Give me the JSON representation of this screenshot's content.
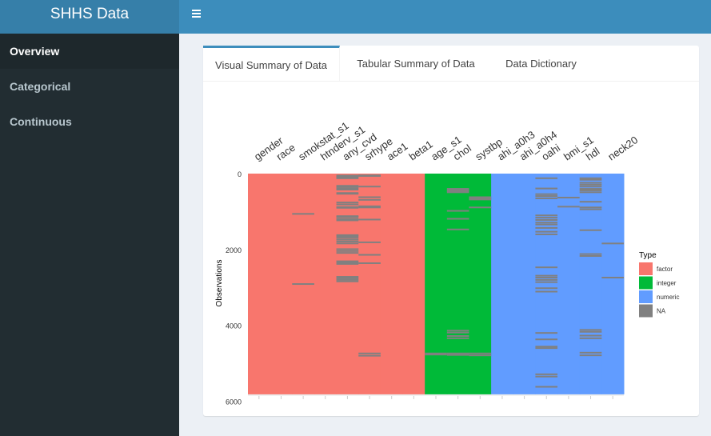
{
  "header": {
    "title": "SHHS Data"
  },
  "sidebar": {
    "items": [
      {
        "label": "Overview"
      },
      {
        "label": "Categorical"
      },
      {
        "label": "Continuous"
      }
    ]
  },
  "tabs": [
    {
      "label": "Visual Summary of Data"
    },
    {
      "label": "Tabular Summary of Data"
    },
    {
      "label": "Data Dictionary"
    }
  ],
  "chart_data": {
    "type": "heatmap",
    "variables": [
      "gender",
      "race",
      "smokstat_s1",
      "htnderv_s1",
      "any_cvd",
      "srhype",
      "ace1",
      "beta1",
      "age_s1",
      "chol",
      "systbp",
      "ahi_a0h3",
      "ahi_a0h4",
      "oahi",
      "bmi_s1",
      "hdl",
      "neck20"
    ],
    "variable_types": [
      "factor",
      "factor",
      "factor",
      "factor",
      "factor",
      "factor",
      "factor",
      "factor",
      "integer",
      "integer",
      "integer",
      "numeric",
      "numeric",
      "numeric",
      "numeric",
      "numeric",
      "numeric"
    ],
    "ylabel": "Observations",
    "y_ticks": [
      "0",
      "2000",
      "4000",
      "6000"
    ],
    "ylim": [
      0,
      6000
    ],
    "n_observations": 5800,
    "legend": {
      "title": "Type",
      "position": "right",
      "entries": [
        {
          "label": "factor",
          "color": "#F8766D"
        },
        {
          "label": "integer",
          "color": "#00BA38"
        },
        {
          "label": "numeric",
          "color": "#619CFF"
        },
        {
          "label": "NA",
          "color": "#808080"
        }
      ]
    },
    "missing": {
      "smokstat_s1": [
        1020,
        2870
      ],
      "any_cvd": [
        10,
        30,
        55,
        80,
        280,
        300,
        340,
        380,
        470,
        490,
        720,
        770,
        840,
        860,
        1080,
        1100,
        1150,
        1190,
        1580,
        1610,
        1650,
        1700,
        1750,
        1800,
        1950,
        2000,
        2050,
        2270,
        2300,
        2340,
        2680,
        2720,
        2760,
        2800
      ],
      "srhype": [
        5,
        10,
        20,
        300,
        580,
        650,
        820,
        850,
        1170,
        1770,
        2100,
        2320,
        4700,
        4760
      ],
      "age_s1": [
        4700,
        4730
      ],
      "chol": [
        360,
        390,
        420,
        450,
        940,
        1150,
        1430,
        4100,
        4150,
        4240,
        4300,
        4700,
        4740
      ],
      "systbp": [
        580,
        610,
        640,
        850,
        4700,
        4750
      ],
      "oahi": [
        80,
        350,
        500,
        550,
        610,
        1060,
        1120,
        1180,
        1250,
        1300,
        1390,
        1490,
        1560,
        2430,
        2650,
        2700,
        2760,
        2820,
        2980,
        3070,
        4160,
        4330,
        4520,
        4560,
        5250,
        5310,
        5580
      ],
      "bmi_s1": [
        590,
        830
      ],
      "hdl": [
        80,
        120,
        200,
        250,
        300,
        360,
        400,
        450,
        700,
        850,
        900,
        1450,
        2080,
        2130,
        4080,
        4130,
        4230,
        4300,
        4680,
        4750
      ],
      "neck20": [
        1800,
        2700
      ]
    }
  }
}
